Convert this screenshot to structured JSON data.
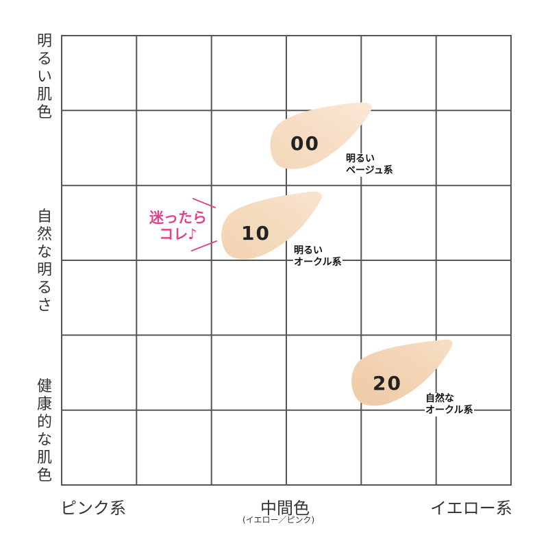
{
  "y_axis": {
    "top": [
      "明",
      "る",
      "い",
      "肌",
      "色"
    ],
    "middle": [
      "自",
      "然",
      "な",
      "明",
      "る",
      "さ"
    ],
    "bottom": [
      "健",
      "康",
      "的",
      "な",
      "肌",
      "色"
    ]
  },
  "x_axis": {
    "left": "ピンク系",
    "center": "中間色",
    "center_sub": "(イエロー／ピンク)",
    "right": "イエロー系"
  },
  "swatches": [
    {
      "number": "00",
      "line1": "明るい",
      "line2": "ベージュ系",
      "color": "#f5dcc0"
    },
    {
      "number": "10",
      "line1": "明るい",
      "line2": "オークル系",
      "color": "#f3d7b8"
    },
    {
      "number": "20",
      "line1": "自然な",
      "line2": "オークル系",
      "color": "#f1d0ad"
    }
  ],
  "recommend": {
    "line1": "迷ったら",
    "line2": "コレ♪",
    "color": "#e0418a"
  },
  "colors": {
    "grid": "#555555",
    "text": "#333333"
  }
}
